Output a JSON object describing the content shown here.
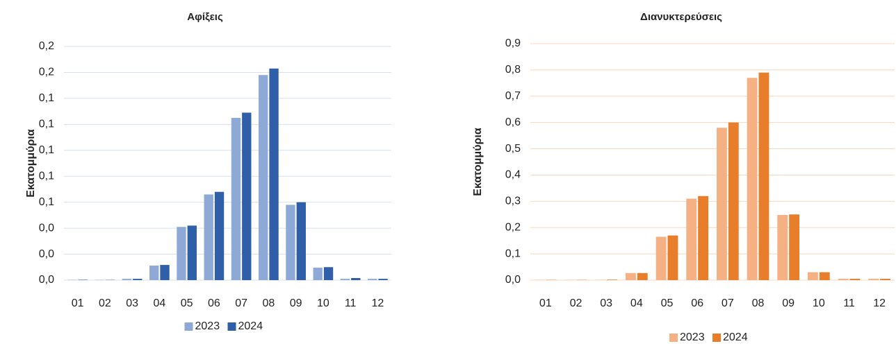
{
  "chart_data": [
    {
      "type": "bar",
      "title": "Αφίξεις",
      "ylabel": "Εκατομμύρια",
      "categories": [
        "01",
        "02",
        "03",
        "04",
        "05",
        "06",
        "07",
        "08",
        "09",
        "10",
        "11",
        "12"
      ],
      "series": [
        {
          "name": "2023",
          "color": "#8fa9d6",
          "values": [
            0.0002,
            0.0002,
            0.001,
            0.0112,
            0.041,
            0.066,
            0.125,
            0.158,
            0.058,
            0.0096,
            0.001,
            0.001
          ]
        },
        {
          "name": "2024",
          "color": "#2e5fa8",
          "values": [
            0.0003,
            0.0002,
            0.001,
            0.0117,
            0.042,
            0.068,
            0.129,
            0.163,
            0.06,
            0.01,
            0.0016,
            0.001
          ]
        }
      ],
      "ylim": [
        0,
        0.18
      ],
      "yticks": [
        {
          "value": 0,
          "label": "0,0"
        },
        {
          "value": 0.02,
          "label": "0,0"
        },
        {
          "value": 0.04,
          "label": "0,0"
        },
        {
          "value": 0.06,
          "label": "0,1"
        },
        {
          "value": 0.08,
          "label": "0,1"
        },
        {
          "value": 0.1,
          "label": "0,1"
        },
        {
          "value": 0.12,
          "label": "0,1"
        },
        {
          "value": 0.14,
          "label": "0,1"
        },
        {
          "value": 0.16,
          "label": "0,2"
        },
        {
          "value": 0.18,
          "label": "0,2"
        }
      ],
      "grid": true,
      "grid_color": "#d6e0ee",
      "legend": "bottom"
    },
    {
      "type": "bar",
      "title": "Διανυκτερεύσεις",
      "ylabel": "Εκατομμύρια",
      "categories": [
        "01",
        "02",
        "03",
        "04",
        "05",
        "06",
        "07",
        "08",
        "09",
        "10",
        "11",
        "12"
      ],
      "series": [
        {
          "name": "2023",
          "color": "#f5b083",
          "values": [
            0.001,
            0.001,
            0.001,
            0.027,
            0.165,
            0.31,
            0.58,
            0.77,
            0.248,
            0.03,
            0.005,
            0.005
          ]
        },
        {
          "name": "2024",
          "color": "#e87d2a",
          "values": [
            0.001,
            0.001,
            0.002,
            0.027,
            0.17,
            0.32,
            0.6,
            0.79,
            0.25,
            0.03,
            0.005,
            0.005
          ]
        }
      ],
      "ylim": [
        0,
        0.9
      ],
      "yticks": [
        {
          "value": 0,
          "label": "0,0"
        },
        {
          "value": 0.1,
          "label": "0,1"
        },
        {
          "value": 0.2,
          "label": "0,2"
        },
        {
          "value": 0.3,
          "label": "0,3"
        },
        {
          "value": 0.4,
          "label": "0,4"
        },
        {
          "value": 0.5,
          "label": "0,5"
        },
        {
          "value": 0.6,
          "label": "0,6"
        },
        {
          "value": 0.7,
          "label": "0,7"
        },
        {
          "value": 0.8,
          "label": "0,8"
        },
        {
          "value": 0.9,
          "label": "0,9"
        }
      ],
      "grid": true,
      "grid_color": "#f8d7bc",
      "legend": "bottom"
    }
  ]
}
